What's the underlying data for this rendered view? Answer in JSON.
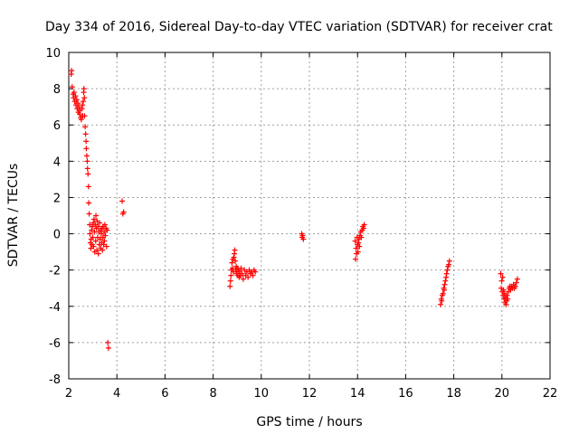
{
  "chart_data": {
    "type": "scatter",
    "title": "Day 334 of 2016, Sidereal Day-to-day VTEC variation (SDTVAR) for receiver crat",
    "xlabel": "GPS time / hours",
    "ylabel": "SDTVAR / TECUs",
    "xlim": [
      2,
      22
    ],
    "ylim": [
      -8,
      10
    ],
    "xticks": [
      2,
      4,
      6,
      8,
      10,
      12,
      14,
      16,
      18,
      20,
      22
    ],
    "yticks": [
      -8,
      -6,
      -4,
      -2,
      0,
      2,
      4,
      6,
      8,
      10
    ],
    "grid": true,
    "marker": "+",
    "series": [
      {
        "name": "SDTVAR",
        "color": "#ff0000",
        "points": [
          [
            2.1,
            8.8
          ],
          [
            2.12,
            9.0
          ],
          [
            2.14,
            8.1
          ],
          [
            2.18,
            7.7
          ],
          [
            2.2,
            7.5
          ],
          [
            2.22,
            7.8
          ],
          [
            2.25,
            7.3
          ],
          [
            2.28,
            7.6
          ],
          [
            2.3,
            7.1
          ],
          [
            2.33,
            7.4
          ],
          [
            2.35,
            6.9
          ],
          [
            2.38,
            7.2
          ],
          [
            2.4,
            6.7
          ],
          [
            2.42,
            7.0
          ],
          [
            2.45,
            6.6
          ],
          [
            2.47,
            6.8
          ],
          [
            2.5,
            6.4
          ],
          [
            2.52,
            6.3
          ],
          [
            2.55,
            6.9
          ],
          [
            2.57,
            7.1
          ],
          [
            2.58,
            6.5
          ],
          [
            2.6,
            7.3
          ],
          [
            2.62,
            7.8
          ],
          [
            2.63,
            8.0
          ],
          [
            2.65,
            7.5
          ],
          [
            2.66,
            6.5
          ],
          [
            2.68,
            5.9
          ],
          [
            2.7,
            5.5
          ],
          [
            2.72,
            5.1
          ],
          [
            2.73,
            4.7
          ],
          [
            2.75,
            4.3
          ],
          [
            2.77,
            4.0
          ],
          [
            2.78,
            3.6
          ],
          [
            2.8,
            3.3
          ],
          [
            2.82,
            2.6
          ],
          [
            2.83,
            1.7
          ],
          [
            2.85,
            1.1
          ],
          [
            2.87,
            0.5
          ],
          [
            2.88,
            0.0
          ],
          [
            2.9,
            -0.5
          ],
          [
            2.92,
            -0.8
          ],
          [
            2.93,
            -0.3
          ],
          [
            2.95,
            0.2
          ],
          [
            2.97,
            -0.6
          ],
          [
            2.98,
            0.4
          ],
          [
            3.0,
            -0.2
          ],
          [
            3.02,
            0.6
          ],
          [
            3.03,
            -0.7
          ],
          [
            3.05,
            0.8
          ],
          [
            3.07,
            0.1
          ],
          [
            3.08,
            -1.0
          ],
          [
            3.1,
            0.5
          ],
          [
            3.12,
            -0.4
          ],
          [
            3.13,
            1.0
          ],
          [
            3.15,
            0.3
          ],
          [
            3.17,
            -0.9
          ],
          [
            3.18,
            0.7
          ],
          [
            3.2,
            -0.2
          ],
          [
            3.22,
            0.4
          ],
          [
            3.23,
            -1.1
          ],
          [
            3.25,
            0.1
          ],
          [
            3.27,
            -0.6
          ],
          [
            3.28,
            0.6
          ],
          [
            3.3,
            -0.3
          ],
          [
            3.32,
            0.2
          ],
          [
            3.33,
            -0.8
          ],
          [
            3.35,
            0.0
          ],
          [
            3.37,
            -0.5
          ],
          [
            3.38,
            0.3
          ],
          [
            3.4,
            -0.9
          ],
          [
            3.42,
            -0.2
          ],
          [
            3.43,
            0.4
          ],
          [
            3.45,
            -0.6
          ],
          [
            3.47,
            0.1
          ],
          [
            3.48,
            -0.4
          ],
          [
            3.5,
            0.5
          ],
          [
            3.52,
            -0.1
          ],
          [
            3.55,
            0.3
          ],
          [
            3.57,
            -0.7
          ],
          [
            3.6,
            0.2
          ],
          [
            3.62,
            -6.0
          ],
          [
            3.65,
            -6.3
          ],
          [
            4.22,
            1.8
          ],
          [
            4.25,
            1.1
          ],
          [
            4.28,
            1.2
          ],
          [
            8.7,
            -2.9
          ],
          [
            8.72,
            -2.6
          ],
          [
            8.74,
            -2.3
          ],
          [
            8.76,
            -2.0
          ],
          [
            8.78,
            -1.6
          ],
          [
            8.8,
            -1.9
          ],
          [
            8.82,
            -1.4
          ],
          [
            8.84,
            -2.1
          ],
          [
            8.86,
            -1.3
          ],
          [
            8.88,
            -1.1
          ],
          [
            8.9,
            -0.9
          ],
          [
            8.92,
            -1.5
          ],
          [
            8.94,
            -2.0
          ],
          [
            8.96,
            -1.8
          ],
          [
            8.98,
            -2.2
          ],
          [
            9.0,
            -1.9
          ],
          [
            9.02,
            -2.3
          ],
          [
            9.05,
            -2.0
          ],
          [
            9.08,
            -2.4
          ],
          [
            9.1,
            -2.1
          ],
          [
            9.13,
            -2.3
          ],
          [
            9.16,
            -1.9
          ],
          [
            9.2,
            -2.2
          ],
          [
            9.25,
            -2.5
          ],
          [
            9.3,
            -2.0
          ],
          [
            9.35,
            -2.3
          ],
          [
            9.4,
            -2.1
          ],
          [
            9.45,
            -2.4
          ],
          [
            9.5,
            -2.0
          ],
          [
            9.55,
            -2.2
          ],
          [
            9.6,
            -2.1
          ],
          [
            9.65,
            -2.3
          ],
          [
            9.7,
            -2.0
          ],
          [
            9.75,
            -2.1
          ],
          [
            11.68,
            0.0
          ],
          [
            11.7,
            -0.2
          ],
          [
            11.72,
            -0.1
          ],
          [
            11.75,
            -0.3
          ],
          [
            13.9,
            -0.4
          ],
          [
            13.92,
            -1.4
          ],
          [
            13.94,
            -0.8
          ],
          [
            13.96,
            -1.1
          ],
          [
            13.98,
            -0.2
          ],
          [
            14.0,
            -0.6
          ],
          [
            14.02,
            -1.0
          ],
          [
            14.04,
            -0.5
          ],
          [
            14.06,
            -0.3
          ],
          [
            14.08,
            -0.7
          ],
          [
            14.1,
            -0.1
          ],
          [
            14.13,
            0.1
          ],
          [
            14.16,
            -0.2
          ],
          [
            14.19,
            0.2
          ],
          [
            14.22,
            0.4
          ],
          [
            14.25,
            0.3
          ],
          [
            14.28,
            0.5
          ],
          [
            17.45,
            -3.9
          ],
          [
            17.48,
            -3.6
          ],
          [
            17.5,
            -3.7
          ],
          [
            17.52,
            -3.4
          ],
          [
            17.55,
            -3.3
          ],
          [
            17.58,
            -3.0
          ],
          [
            17.6,
            -3.1
          ],
          [
            17.62,
            -2.8
          ],
          [
            17.65,
            -2.6
          ],
          [
            17.68,
            -2.4
          ],
          [
            17.7,
            -2.2
          ],
          [
            17.73,
            -2.0
          ],
          [
            17.76,
            -1.8
          ],
          [
            17.79,
            -1.7
          ],
          [
            17.82,
            -1.5
          ],
          [
            19.95,
            -2.2
          ],
          [
            19.97,
            -3.0
          ],
          [
            19.99,
            -2.6
          ],
          [
            20.01,
            -3.2
          ],
          [
            20.03,
            -2.4
          ],
          [
            20.05,
            -3.4
          ],
          [
            20.07,
            -3.1
          ],
          [
            20.09,
            -3.6
          ],
          [
            20.11,
            -3.3
          ],
          [
            20.13,
            -3.8
          ],
          [
            20.15,
            -3.5
          ],
          [
            20.17,
            -3.9
          ],
          [
            20.19,
            -3.7
          ],
          [
            20.21,
            -3.4
          ],
          [
            20.24,
            -3.6
          ],
          [
            20.27,
            -3.2
          ],
          [
            20.3,
            -3.0
          ],
          [
            20.33,
            -2.9
          ],
          [
            20.36,
            -3.1
          ],
          [
            20.4,
            -2.9
          ],
          [
            20.44,
            -3.0
          ],
          [
            20.48,
            -2.8
          ],
          [
            20.52,
            -3.0
          ],
          [
            20.56,
            -2.9
          ],
          [
            20.6,
            -2.7
          ],
          [
            20.64,
            -2.5
          ]
        ]
      }
    ]
  }
}
